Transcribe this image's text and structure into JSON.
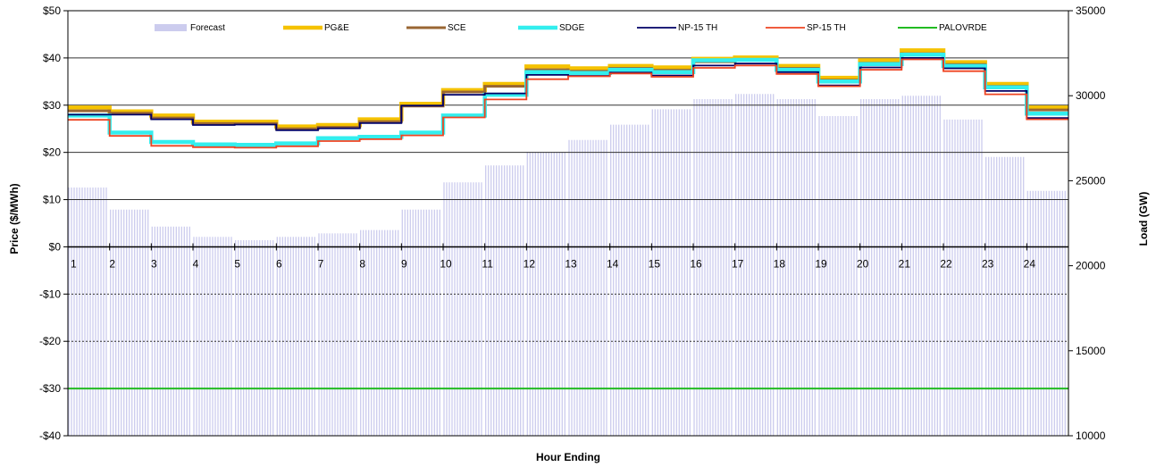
{
  "chart_data": {
    "type": "line",
    "xlabel": "Hour Ending",
    "ylabel": "Price ($/MWh)",
    "y2label": "Load (GW)",
    "ylim": [
      -40,
      50
    ],
    "y2lim": [
      10000,
      35000
    ],
    "yticks": [
      -40,
      -30,
      -20,
      -10,
      0,
      10,
      20,
      30,
      40,
      50
    ],
    "ytick_labels": [
      "-$40",
      "-$30",
      "-$20",
      "-$10",
      "$0",
      "$10",
      "$20",
      "$30",
      "$40",
      "$50"
    ],
    "y2ticks": [
      10000,
      15000,
      20000,
      25000,
      30000,
      35000
    ],
    "y2tick_labels": [
      "10000",
      "15000",
      "20000",
      "25000",
      "30000",
      "35000"
    ],
    "categories": [
      "1",
      "2",
      "3",
      "4",
      "5",
      "6",
      "7",
      "8",
      "9",
      "10",
      "11",
      "12",
      "13",
      "14",
      "15",
      "16",
      "17",
      "18",
      "19",
      "20",
      "21",
      "22",
      "23",
      "24"
    ],
    "grid": "horizontal",
    "legend_position": "top",
    "legend": [
      "Forecast",
      "PG&E",
      "SCE",
      "SDGE",
      "NP-15 TH",
      "SP-15 TH",
      "PALOVRDE"
    ],
    "forecast": {
      "name": "Forecast",
      "color": "#ccccee",
      "values": [
        24600,
        23300,
        22300,
        21700,
        21500,
        21700,
        21900,
        22100,
        23300,
        24900,
        25900,
        26700,
        27400,
        28300,
        29200,
        29800,
        30100,
        29800,
        28800,
        29800,
        30000,
        28600,
        26400,
        24400
      ]
    },
    "series": [
      {
        "name": "PG&E",
        "color": "#f5c200",
        "width": 4.5,
        "values": [
          29.5,
          28.7,
          27.8,
          26.5,
          26.5,
          25.5,
          25.8,
          27.0,
          30.3,
          33.2,
          34.5,
          38.2,
          37.8,
          38.3,
          38.0,
          39.8,
          40.1,
          38.3,
          35.8,
          39.5,
          41.6,
          39.1,
          34.5,
          29.5
        ]
      },
      {
        "name": "SCE",
        "color": "#996633",
        "width": 3,
        "values": [
          28.8,
          28.3,
          27.3,
          26.1,
          26.1,
          25.0,
          25.3,
          26.5,
          29.8,
          32.8,
          34.0,
          37.5,
          37.2,
          37.8,
          37.4,
          39.2,
          39.7,
          37.8,
          35.3,
          38.9,
          40.9,
          38.6,
          34.0,
          29.0
        ]
      },
      {
        "name": "SDGE",
        "color": "#33eeee",
        "width": 4.5,
        "values": [
          27.8,
          24.2,
          22.2,
          21.7,
          21.6,
          21.9,
          23.0,
          23.3,
          24.2,
          27.8,
          32.2,
          37.0,
          36.8,
          37.5,
          37.0,
          39.5,
          39.6,
          37.5,
          35.0,
          38.7,
          40.7,
          38.3,
          33.8,
          28.2
        ]
      },
      {
        "name": "NP-15 TH",
        "color": "#000066",
        "width": 1.8,
        "values": [
          28.0,
          28.0,
          27.0,
          25.8,
          25.9,
          24.7,
          25.1,
          26.2,
          29.9,
          32.2,
          32.5,
          36.4,
          36.2,
          36.9,
          36.3,
          38.4,
          38.8,
          37.0,
          34.2,
          38.0,
          40.0,
          37.8,
          33.0,
          27.3
        ]
      },
      {
        "name": "SP-15 TH",
        "color": "#ee4422",
        "width": 1.8,
        "values": [
          26.9,
          23.5,
          21.4,
          21.1,
          21.0,
          21.3,
          22.4,
          22.8,
          23.6,
          27.4,
          31.2,
          35.5,
          36.1,
          36.7,
          36.0,
          37.9,
          38.4,
          36.6,
          34.0,
          37.5,
          39.7,
          37.2,
          32.3,
          27.0
        ]
      },
      {
        "name": "PALOVRDE",
        "color": "#22bb22",
        "width": 2,
        "values": [
          -30,
          -30,
          -30,
          -30,
          -30,
          -30,
          -30,
          -30,
          -30,
          -30,
          -30,
          -30,
          -30,
          -30,
          -30,
          -30,
          -30,
          -30,
          -30,
          -30,
          -30,
          -30,
          -30,
          -30
        ]
      }
    ]
  }
}
